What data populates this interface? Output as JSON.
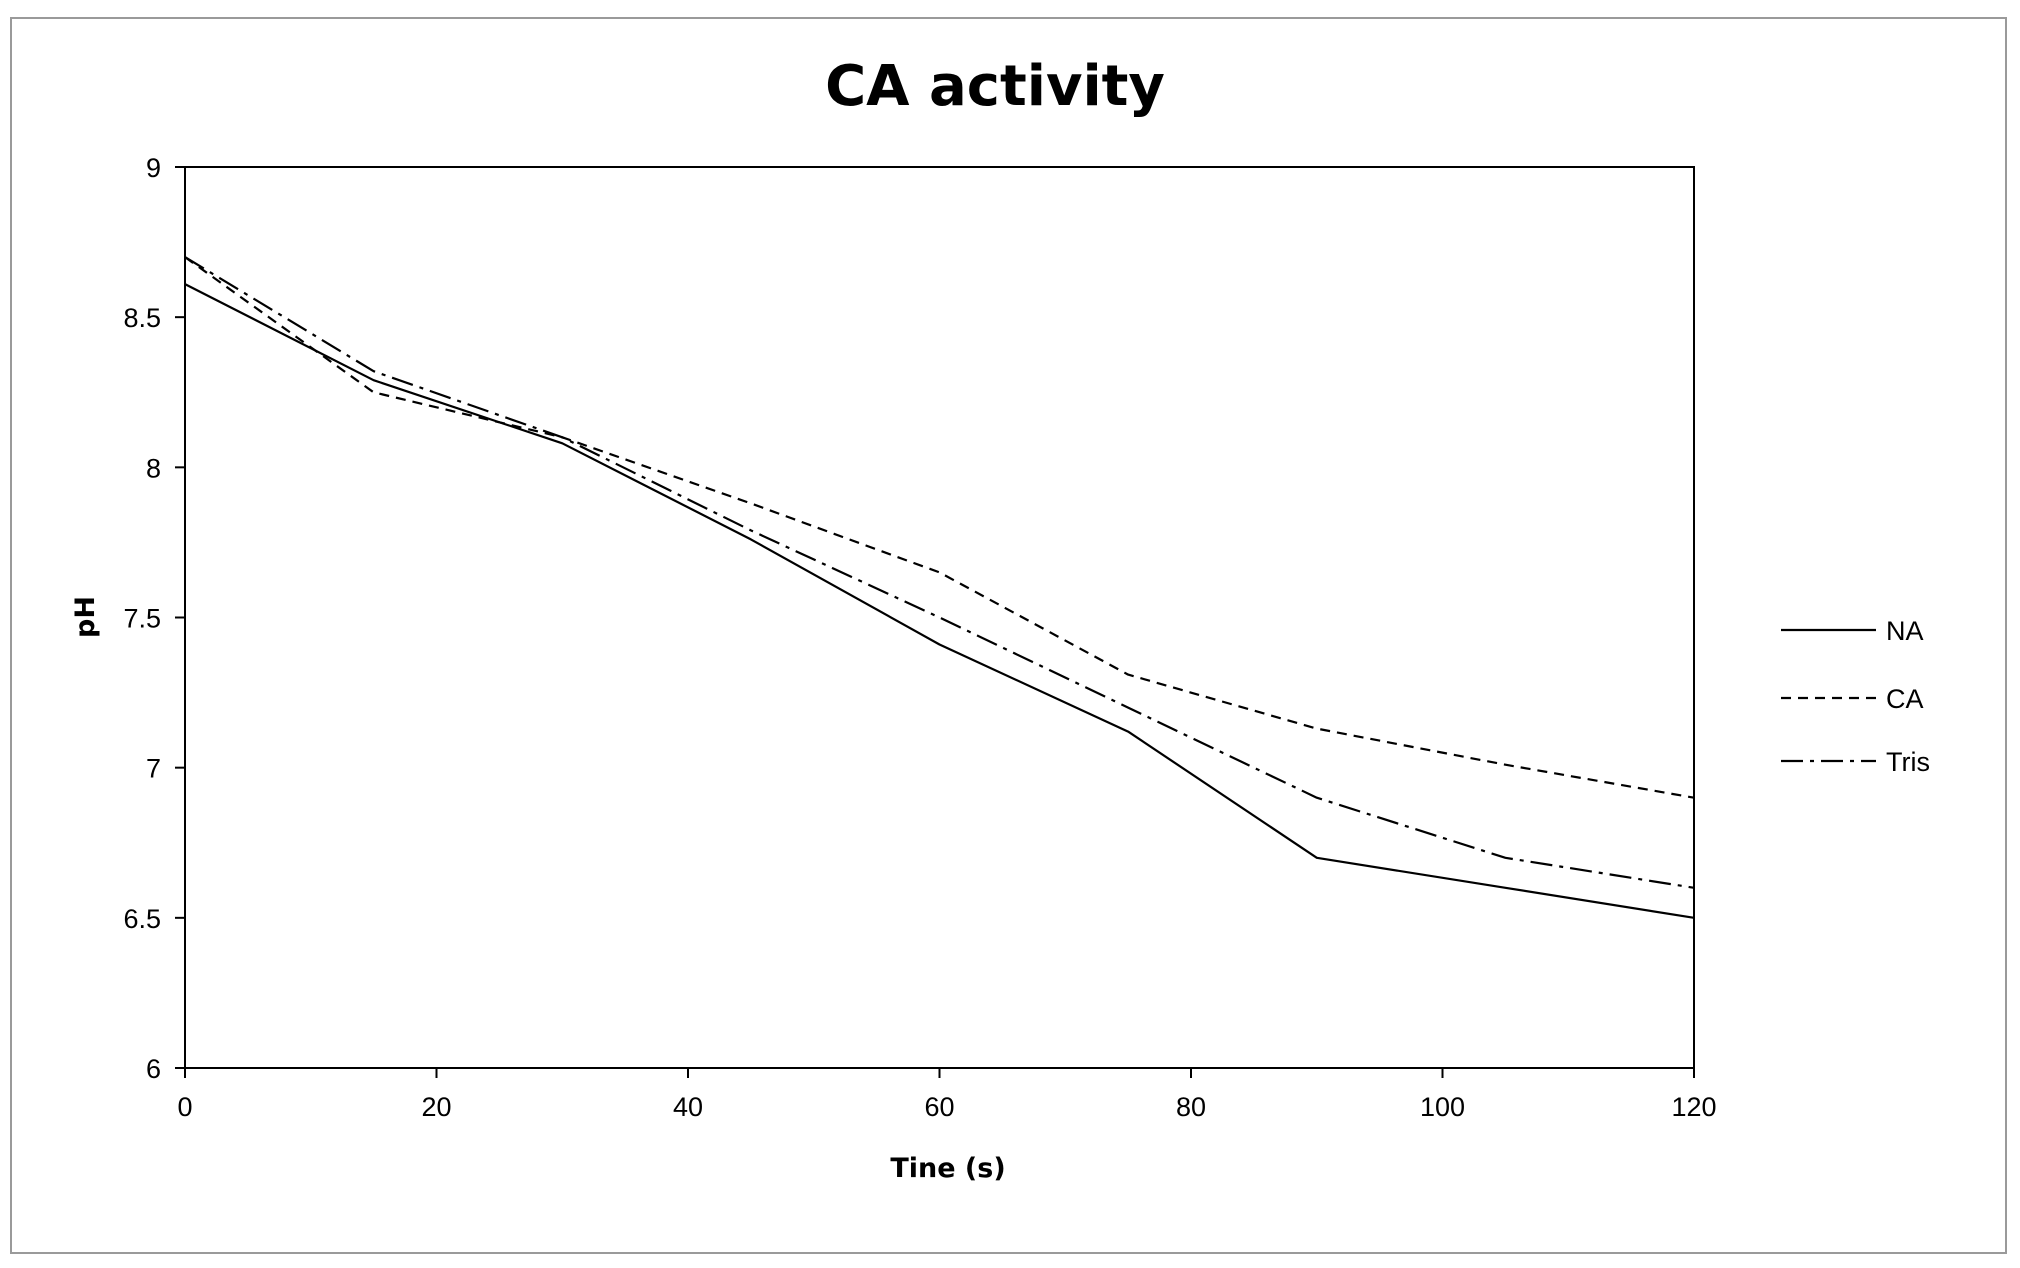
{
  "chart_data": {
    "type": "line",
    "title": "CA activity",
    "xlabel": "Tine (s)",
    "ylabel": "pH",
    "xlim": [
      0,
      120
    ],
    "ylim": [
      6,
      9
    ],
    "x_ticks": [
      "0",
      "20",
      "40",
      "60",
      "80",
      "100",
      "120"
    ],
    "y_ticks": [
      "6",
      "6.5",
      "7",
      "7.5",
      "8",
      "8.5",
      "9"
    ],
    "grid": false,
    "legend_position": "right",
    "series": [
      {
        "name": "NA",
        "style": "solid",
        "color": "#000000",
        "x": [
          0,
          15,
          30,
          45,
          60,
          75,
          90,
          105,
          120
        ],
        "y": [
          8.61,
          8.29,
          8.08,
          7.76,
          7.41,
          7.12,
          6.7,
          6.6,
          6.5
        ]
      },
      {
        "name": "CA",
        "style": "dashed",
        "color": "#000000",
        "x": [
          0,
          15,
          30,
          45,
          60,
          75,
          90,
          105,
          120
        ],
        "y": [
          8.7,
          8.25,
          8.1,
          7.88,
          7.65,
          7.31,
          7.13,
          7.01,
          6.9
        ]
      },
      {
        "name": "Tris",
        "style": "dash-dot",
        "color": "#000000",
        "x": [
          0,
          15,
          30,
          45,
          60,
          75,
          90,
          105,
          120
        ],
        "y": [
          8.7,
          8.32,
          8.1,
          7.79,
          7.5,
          7.2,
          6.9,
          6.7,
          6.6
        ]
      }
    ]
  }
}
